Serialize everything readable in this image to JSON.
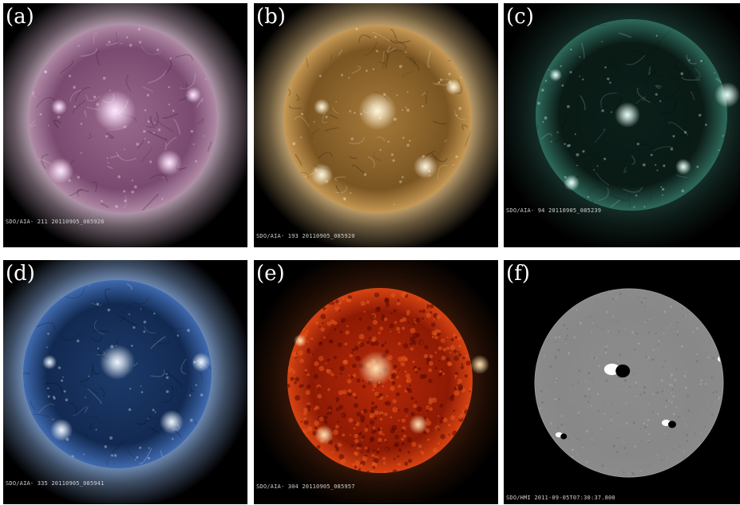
{
  "panels": [
    {
      "letter": "(a)",
      "caption": "SDO/AIA- 211 20110905_085926",
      "style": "corona",
      "colors": {
        "bg": "#000000",
        "disk_center": "#9a6a8e",
        "disk_mid": "#7a4a70",
        "disk_edge": "#b08aa6",
        "corona": "#e8c8e0",
        "bright": "#ffe8ff"
      }
    },
    {
      "letter": "(b)",
      "caption": "SDO/AIA- 193 20110905_085920",
      "style": "corona",
      "colors": {
        "bg": "#000000",
        "disk_center": "#a67a3a",
        "disk_mid": "#7a5522",
        "disk_edge": "#c89a55",
        "corona": "#f2cc8c",
        "bright": "#fff6dc"
      }
    },
    {
      "letter": "(c)",
      "caption": "SDO/AIA- 94 20110905_085239",
      "style": "dark-disk",
      "colors": {
        "bg": "#000000",
        "disk_center": "#0b1f19",
        "disk_mid": "#0a1a15",
        "disk_edge": "#2e6b5c",
        "corona": "#4aa08a",
        "bright": "#e6fff8"
      }
    },
    {
      "letter": "(d)",
      "caption": "SDO/AIA- 335 20110905_085941",
      "style": "corona",
      "colors": {
        "bg": "#000000",
        "disk_center": "#1c3a6a",
        "disk_mid": "#122a52",
        "disk_edge": "#3f6ab0",
        "corona": "#8fb4ea",
        "bright": "#eef6ff"
      }
    },
    {
      "letter": "(e)",
      "caption": "SDO/AIA- 304 20110905_085957",
      "style": "chromosphere",
      "colors": {
        "bg": "#000000",
        "disk_center": "#b82a08",
        "disk_mid": "#8e1a04",
        "disk_edge": "#d84412",
        "corona": "#ff6a22",
        "bright": "#ffe0b0"
      }
    },
    {
      "letter": "(f)",
      "caption": "SDO/HMI 2011-09-05T07:30:37.800",
      "style": "magnetogram",
      "colors": {
        "bg": "#000000",
        "disk_center": "#8c8c8c",
        "disk_mid": "#888888",
        "disk_edge": "#8a8a8a",
        "corona": "#000000",
        "bright": "#ffffff"
      }
    }
  ]
}
